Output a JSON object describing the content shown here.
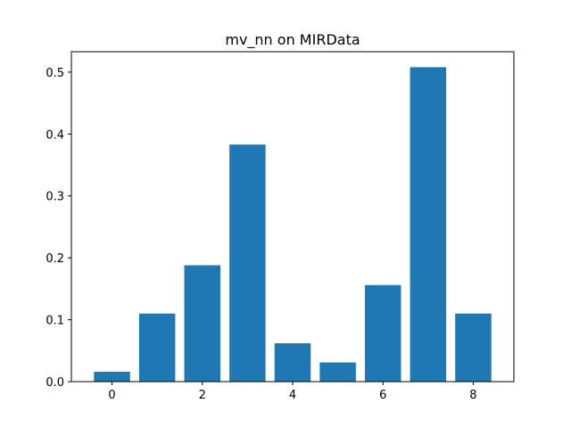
{
  "chart_data": {
    "type": "bar",
    "title": "mv_nn on MIRData",
    "xlabel": "",
    "ylabel": "",
    "categories": [
      0,
      1,
      2,
      3,
      4,
      5,
      6,
      7,
      8
    ],
    "values": [
      0.016,
      0.11,
      0.188,
      0.383,
      0.062,
      0.031,
      0.156,
      0.508,
      0.11
    ],
    "xlim": [
      -0.9,
      8.9
    ],
    "ylim": [
      0,
      0.533
    ],
    "xticks": [
      0,
      2,
      4,
      6,
      8
    ],
    "xtick_labels": [
      "0",
      "2",
      "4",
      "6",
      "8"
    ],
    "yticks": [
      0.0,
      0.1,
      0.2,
      0.3,
      0.4,
      0.5
    ],
    "ytick_labels": [
      "0.0",
      "0.1",
      "0.2",
      "0.3",
      "0.4",
      "0.5"
    ],
    "bar_width": 0.8,
    "bar_color": "#1f77b4",
    "grid": false,
    "legend": "none"
  }
}
